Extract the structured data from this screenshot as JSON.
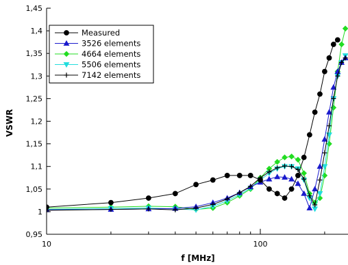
{
  "chart_data": {
    "type": "line",
    "title": "",
    "xlabel": "f [MHz]",
    "ylabel": "VSWR",
    "xscale": "log",
    "xlim": [
      10,
      250
    ],
    "ylim": [
      0.95,
      1.45
    ],
    "grid": false,
    "legend_position": "top-left",
    "x_ticks": [
      {
        "value": 10,
        "label": "10"
      },
      {
        "value": 100,
        "label": "100"
      }
    ],
    "y_ticks": [
      {
        "value": 0.95,
        "label": "0,95"
      },
      {
        "value": 1.0,
        "label": "1"
      },
      {
        "value": 1.05,
        "label": "1,05"
      },
      {
        "value": 1.1,
        "label": "1,1"
      },
      {
        "value": 1.15,
        "label": "1,15"
      },
      {
        "value": 1.2,
        "label": "1,2"
      },
      {
        "value": 1.25,
        "label": "1,25"
      },
      {
        "value": 1.3,
        "label": "1,3"
      },
      {
        "value": 1.35,
        "label": "1,35"
      },
      {
        "value": 1.4,
        "label": "1,4"
      },
      {
        "value": 1.45,
        "label": "1,45"
      }
    ],
    "series": [
      {
        "name": "Measured",
        "color": "#000000",
        "marker": "circle",
        "x": [
          10,
          20,
          30,
          40,
          50,
          60,
          70,
          80,
          90,
          100,
          110,
          120,
          130,
          140,
          150,
          160,
          170,
          180,
          190,
          200,
          210,
          220,
          230
        ],
        "y": [
          1.01,
          1.02,
          1.03,
          1.04,
          1.06,
          1.07,
          1.08,
          1.08,
          1.08,
          1.07,
          1.05,
          1.04,
          1.03,
          1.05,
          1.08,
          1.12,
          1.17,
          1.22,
          1.26,
          1.31,
          1.34,
          1.37,
          1.38
        ]
      },
      {
        "name": "3526 elements",
        "color": "#1a1acc",
        "marker": "triangle-up",
        "x": [
          10,
          20,
          30,
          40,
          50,
          60,
          70,
          80,
          90,
          100,
          110,
          120,
          130,
          140,
          150,
          160,
          170,
          180,
          190,
          200,
          210,
          220,
          230,
          240,
          250
        ],
        "y": [
          1.004,
          1.005,
          1.006,
          1.007,
          1.011,
          1.02,
          1.03,
          1.042,
          1.055,
          1.065,
          1.072,
          1.077,
          1.076,
          1.072,
          1.062,
          1.04,
          1.008,
          1.05,
          1.1,
          1.16,
          1.22,
          1.275,
          1.31,
          1.33,
          1.34
        ]
      },
      {
        "name": "4664 elements",
        "color": "#22dd22",
        "marker": "diamond",
        "x": [
          10,
          20,
          30,
          40,
          50,
          60,
          70,
          80,
          90,
          100,
          110,
          120,
          130,
          140,
          150,
          160,
          170,
          180,
          190,
          200,
          210,
          220,
          230,
          240,
          250
        ],
        "y": [
          1.008,
          1.01,
          1.012,
          1.011,
          1.005,
          1.008,
          1.02,
          1.035,
          1.05,
          1.075,
          1.095,
          1.11,
          1.12,
          1.122,
          1.115,
          1.085,
          1.04,
          1.02,
          1.03,
          1.08,
          1.15,
          1.23,
          1.31,
          1.37,
          1.405
        ]
      },
      {
        "name": "5506 elements",
        "color": "#22dddd",
        "marker": "triangle-down",
        "x": [
          10,
          20,
          30,
          40,
          50,
          60,
          70,
          80,
          90,
          100,
          110,
          120,
          130,
          140,
          150,
          160,
          170,
          180,
          190,
          200,
          210,
          220,
          230,
          240,
          250
        ],
        "y": [
          1.005,
          1.007,
          1.008,
          1.006,
          1.004,
          1.012,
          1.024,
          1.038,
          1.052,
          1.07,
          1.085,
          1.095,
          1.1,
          1.1,
          1.095,
          1.07,
          1.03,
          1.006,
          1.04,
          1.1,
          1.17,
          1.25,
          1.3,
          1.33,
          1.345
        ]
      },
      {
        "name": "7142 elements",
        "color": "#000000",
        "marker": "plus",
        "x": [
          10,
          20,
          30,
          40,
          50,
          60,
          70,
          80,
          90,
          100,
          110,
          120,
          130,
          140,
          150,
          160,
          170,
          180,
          190,
          200,
          210,
          220,
          230,
          240,
          250
        ],
        "y": [
          1.003,
          1.005,
          1.006,
          1.004,
          1.008,
          1.016,
          1.028,
          1.042,
          1.056,
          1.075,
          1.088,
          1.097,
          1.101,
          1.1,
          1.093,
          1.072,
          1.035,
          1.015,
          1.07,
          1.13,
          1.19,
          1.25,
          1.3,
          1.33,
          1.34
        ]
      }
    ]
  }
}
